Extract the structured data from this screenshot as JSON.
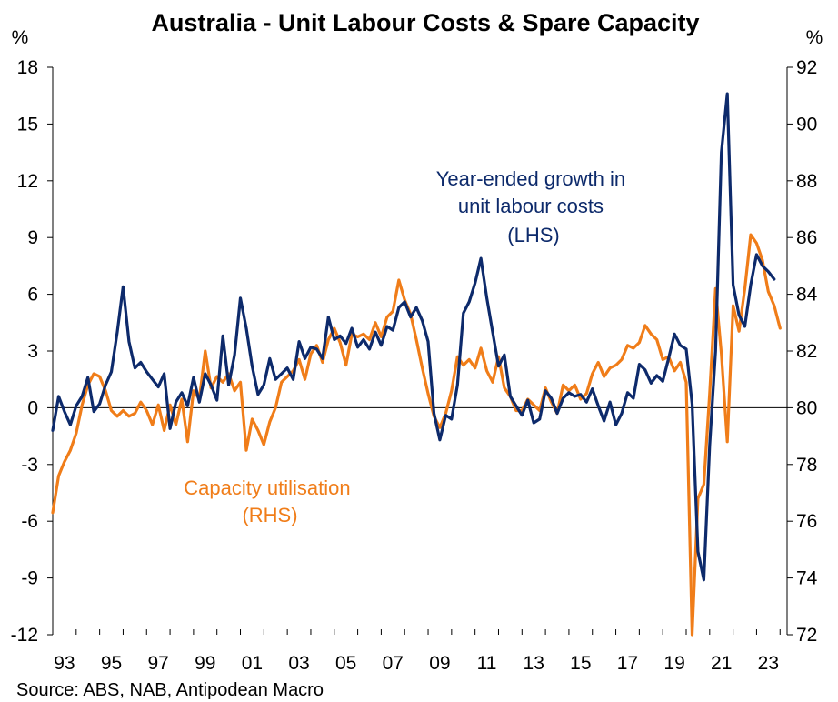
{
  "chart_data": {
    "type": "line",
    "title": "Australia - Unit Labour Costs & Spare Capacity",
    "source": "Source: ABS, NAB, Antipodean Macro",
    "x_tick_labels": [
      "93",
      "95",
      "97",
      "99",
      "01",
      "03",
      "05",
      "07",
      "09",
      "11",
      "13",
      "15",
      "17",
      "19",
      "21",
      "23"
    ],
    "x_range": [
      1993,
      2024.3
    ],
    "left_axis": {
      "unit": "%",
      "ylim": [
        -12,
        18
      ],
      "ticks": [
        -12,
        -9,
        -6,
        -3,
        0,
        3,
        6,
        9,
        12,
        15,
        18
      ]
    },
    "right_axis": {
      "unit": "%",
      "ylim": [
        72,
        92
      ],
      "ticks": [
        72,
        74,
        76,
        78,
        80,
        82,
        84,
        86,
        88,
        90,
        92
      ]
    },
    "colors": {
      "ulc": "#0d2a6b",
      "capacity": "#f07d19"
    },
    "annotations": {
      "ulc": [
        "Year-ended growth in",
        "unit labour costs",
        "(LHS)"
      ],
      "capacity": [
        "Capacity utilisation",
        "(RHS)"
      ]
    },
    "series": [
      {
        "name": "Year-ended growth in unit labour costs (LHS)",
        "axis": "left",
        "points": [
          [
            1993.0,
            -1.2
          ],
          [
            1993.25,
            0.6
          ],
          [
            1993.5,
            -0.2
          ],
          [
            1993.75,
            -0.9
          ],
          [
            1994.0,
            0.1
          ],
          [
            1994.25,
            0.6
          ],
          [
            1994.5,
            1.6
          ],
          [
            1994.75,
            -0.2
          ],
          [
            1995.0,
            0.2
          ],
          [
            1995.25,
            1.2
          ],
          [
            1995.5,
            1.9
          ],
          [
            1995.75,
            4.0
          ],
          [
            1996.0,
            6.4
          ],
          [
            1996.25,
            3.5
          ],
          [
            1996.5,
            2.1
          ],
          [
            1996.75,
            2.4
          ],
          [
            1997.0,
            1.9
          ],
          [
            1997.25,
            1.5
          ],
          [
            1997.5,
            1.1
          ],
          [
            1997.75,
            1.8
          ],
          [
            1998.0,
            -1.1
          ],
          [
            1998.25,
            0.3
          ],
          [
            1998.5,
            0.8
          ],
          [
            1998.75,
            0.1
          ],
          [
            1999.0,
            1.6
          ],
          [
            1999.25,
            0.3
          ],
          [
            1999.5,
            1.8
          ],
          [
            1999.75,
            1.2
          ],
          [
            2000.0,
            0.4
          ],
          [
            2000.25,
            3.8
          ],
          [
            2000.5,
            1.2
          ],
          [
            2000.75,
            2.8
          ],
          [
            2001.0,
            5.8
          ],
          [
            2001.25,
            4.2
          ],
          [
            2001.5,
            2.2
          ],
          [
            2001.75,
            0.7
          ],
          [
            2002.0,
            1.2
          ],
          [
            2002.25,
            2.6
          ],
          [
            2002.5,
            1.5
          ],
          [
            2002.75,
            1.8
          ],
          [
            2003.0,
            2.1
          ],
          [
            2003.25,
            1.5
          ],
          [
            2003.5,
            3.5
          ],
          [
            2003.75,
            2.6
          ],
          [
            2004.0,
            3.2
          ],
          [
            2004.25,
            3.1
          ],
          [
            2004.5,
            2.6
          ],
          [
            2004.75,
            4.8
          ],
          [
            2005.0,
            3.6
          ],
          [
            2005.25,
            3.8
          ],
          [
            2005.5,
            3.4
          ],
          [
            2005.75,
            4.2
          ],
          [
            2006.0,
            3.2
          ],
          [
            2006.25,
            3.6
          ],
          [
            2006.5,
            3.1
          ],
          [
            2006.75,
            4.0
          ],
          [
            2007.0,
            3.3
          ],
          [
            2007.25,
            4.3
          ],
          [
            2007.5,
            4.1
          ],
          [
            2007.75,
            5.3
          ],
          [
            2008.0,
            5.6
          ],
          [
            2008.25,
            4.8
          ],
          [
            2008.5,
            5.3
          ],
          [
            2008.75,
            4.6
          ],
          [
            2009.0,
            3.5
          ],
          [
            2009.25,
            -0.3
          ],
          [
            2009.5,
            -1.7
          ],
          [
            2009.75,
            -0.4
          ],
          [
            2010.0,
            -0.6
          ],
          [
            2010.25,
            1.2
          ],
          [
            2010.5,
            5.0
          ],
          [
            2010.75,
            5.6
          ],
          [
            2011.0,
            6.6
          ],
          [
            2011.25,
            7.9
          ],
          [
            2011.5,
            5.8
          ],
          [
            2011.75,
            4.0
          ],
          [
            2012.0,
            2.2
          ],
          [
            2012.25,
            2.8
          ],
          [
            2012.5,
            0.6
          ],
          [
            2012.75,
            0.1
          ],
          [
            2013.0,
            -0.4
          ],
          [
            2013.25,
            0.4
          ],
          [
            2013.5,
            -0.8
          ],
          [
            2013.75,
            -0.6
          ],
          [
            2014.0,
            0.9
          ],
          [
            2014.25,
            0.5
          ],
          [
            2014.5,
            -0.3
          ],
          [
            2014.75,
            0.5
          ],
          [
            2015.0,
            0.8
          ],
          [
            2015.25,
            0.6
          ],
          [
            2015.5,
            0.7
          ],
          [
            2015.75,
            0.3
          ],
          [
            2016.0,
            1.0
          ],
          [
            2016.25,
            0.1
          ],
          [
            2016.5,
            -0.7
          ],
          [
            2016.75,
            0.3
          ],
          [
            2017.0,
            -0.9
          ],
          [
            2017.25,
            -0.3
          ],
          [
            2017.5,
            0.8
          ],
          [
            2017.75,
            0.5
          ],
          [
            2018.0,
            2.3
          ],
          [
            2018.25,
            2.0
          ],
          [
            2018.5,
            1.3
          ],
          [
            2018.75,
            1.7
          ],
          [
            2019.0,
            1.4
          ],
          [
            2019.25,
            2.6
          ],
          [
            2019.5,
            3.9
          ],
          [
            2019.75,
            3.3
          ],
          [
            2020.0,
            3.1
          ],
          [
            2020.25,
            0.2
          ],
          [
            2020.5,
            -7.6
          ],
          [
            2020.75,
            -9.1
          ],
          [
            2021.0,
            -2.0
          ],
          [
            2021.25,
            3.0
          ],
          [
            2021.5,
            13.5
          ],
          [
            2021.75,
            16.6
          ],
          [
            2022.0,
            6.5
          ],
          [
            2022.25,
            4.9
          ],
          [
            2022.5,
            4.3
          ],
          [
            2022.75,
            6.5
          ],
          [
            2023.0,
            8.1
          ],
          [
            2023.25,
            7.5
          ],
          [
            2023.5,
            7.2
          ],
          [
            2023.75,
            6.8
          ]
        ]
      },
      {
        "name": "Capacity utilisation (RHS)",
        "axis": "right",
        "points": [
          [
            1993.0,
            76.3
          ],
          [
            1993.25,
            77.6
          ],
          [
            1993.5,
            78.1
          ],
          [
            1993.75,
            78.5
          ],
          [
            1994.0,
            79.1
          ],
          [
            1994.25,
            80.1
          ],
          [
            1994.5,
            80.8
          ],
          [
            1994.75,
            81.2
          ],
          [
            1995.0,
            81.1
          ],
          [
            1995.25,
            80.6
          ],
          [
            1995.5,
            79.9
          ],
          [
            1995.75,
            79.7
          ],
          [
            1996.0,
            79.9
          ],
          [
            1996.25,
            79.7
          ],
          [
            1996.5,
            79.8
          ],
          [
            1996.75,
            80.2
          ],
          [
            1997.0,
            79.9
          ],
          [
            1997.25,
            79.4
          ],
          [
            1997.5,
            80.1
          ],
          [
            1997.75,
            79.2
          ],
          [
            1998.0,
            80.1
          ],
          [
            1998.25,
            79.4
          ],
          [
            1998.5,
            80.3
          ],
          [
            1998.75,
            78.8
          ],
          [
            1999.0,
            80.6
          ],
          [
            1999.25,
            80.3
          ],
          [
            1999.5,
            82.0
          ],
          [
            1999.75,
            80.7
          ],
          [
            2000.0,
            81.1
          ],
          [
            2000.25,
            80.9
          ],
          [
            2000.5,
            81.2
          ],
          [
            2000.75,
            80.6
          ],
          [
            2001.0,
            80.9
          ],
          [
            2001.25,
            78.5
          ],
          [
            2001.5,
            79.6
          ],
          [
            2001.75,
            79.2
          ],
          [
            2002.0,
            78.7
          ],
          [
            2002.25,
            79.5
          ],
          [
            2002.5,
            80.0
          ],
          [
            2002.75,
            80.9
          ],
          [
            2003.0,
            81.1
          ],
          [
            2003.25,
            81.3
          ],
          [
            2003.5,
            81.7
          ],
          [
            2003.75,
            81.0
          ],
          [
            2004.0,
            81.9
          ],
          [
            2004.25,
            82.2
          ],
          [
            2004.5,
            81.6
          ],
          [
            2004.75,
            82.4
          ],
          [
            2005.0,
            82.8
          ],
          [
            2005.25,
            82.3
          ],
          [
            2005.5,
            81.5
          ],
          [
            2005.75,
            82.6
          ],
          [
            2006.0,
            82.5
          ],
          [
            2006.25,
            82.6
          ],
          [
            2006.5,
            82.4
          ],
          [
            2006.75,
            83.0
          ],
          [
            2007.0,
            82.5
          ],
          [
            2007.25,
            83.2
          ],
          [
            2007.5,
            83.4
          ],
          [
            2007.75,
            84.5
          ],
          [
            2008.0,
            83.8
          ],
          [
            2008.25,
            83.3
          ],
          [
            2008.5,
            82.4
          ],
          [
            2008.75,
            81.4
          ],
          [
            2009.0,
            80.5
          ],
          [
            2009.25,
            79.7
          ],
          [
            2009.5,
            79.3
          ],
          [
            2009.75,
            79.8
          ],
          [
            2010.0,
            80.6
          ],
          [
            2010.25,
            81.8
          ],
          [
            2010.5,
            81.5
          ],
          [
            2010.75,
            81.7
          ],
          [
            2011.0,
            81.4
          ],
          [
            2011.25,
            82.1
          ],
          [
            2011.5,
            81.3
          ],
          [
            2011.75,
            80.9
          ],
          [
            2012.0,
            81.8
          ],
          [
            2012.25,
            80.7
          ],
          [
            2012.5,
            80.4
          ],
          [
            2012.75,
            79.9
          ],
          [
            2013.0,
            79.9
          ],
          [
            2013.25,
            80.3
          ],
          [
            2013.5,
            80.1
          ],
          [
            2013.75,
            79.9
          ],
          [
            2014.0,
            80.7
          ],
          [
            2014.25,
            80.2
          ],
          [
            2014.5,
            79.8
          ],
          [
            2014.75,
            80.8
          ],
          [
            2015.0,
            80.6
          ],
          [
            2015.25,
            80.8
          ],
          [
            2015.5,
            80.3
          ],
          [
            2015.75,
            80.5
          ],
          [
            2016.0,
            81.2
          ],
          [
            2016.25,
            81.6
          ],
          [
            2016.5,
            81.1
          ],
          [
            2016.75,
            81.4
          ],
          [
            2017.0,
            81.5
          ],
          [
            2017.25,
            81.7
          ],
          [
            2017.5,
            82.2
          ],
          [
            2017.75,
            82.1
          ],
          [
            2018.0,
            82.3
          ],
          [
            2018.25,
            82.9
          ],
          [
            2018.5,
            82.6
          ],
          [
            2018.75,
            82.4
          ],
          [
            2019.0,
            81.7
          ],
          [
            2019.25,
            81.8
          ],
          [
            2019.5,
            81.3
          ],
          [
            2019.75,
            81.6
          ],
          [
            2020.0,
            80.9
          ],
          [
            2020.25,
            72.0
          ],
          [
            2020.5,
            76.8
          ],
          [
            2020.75,
            77.3
          ],
          [
            2021.0,
            80.5
          ],
          [
            2021.25,
            84.2
          ],
          [
            2021.5,
            81.9
          ],
          [
            2021.75,
            78.8
          ],
          [
            2022.0,
            83.6
          ],
          [
            2022.25,
            82.7
          ],
          [
            2022.5,
            84.2
          ],
          [
            2022.75,
            86.1
          ],
          [
            2023.0,
            85.8
          ],
          [
            2023.25,
            85.2
          ],
          [
            2023.5,
            84.1
          ],
          [
            2023.75,
            83.6
          ],
          [
            2024.0,
            82.8
          ]
        ]
      }
    ]
  }
}
